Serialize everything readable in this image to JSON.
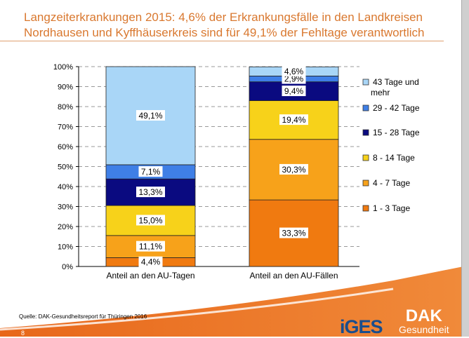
{
  "title": {
    "line1": "Langzeiterkrankungen 2015: 4,6% der Erkrankungsfälle in den Landkreisen",
    "line2": "Nordhausen und Kyffhäuserkreis sind für 49,1% der Fehltage verantwortlich"
  },
  "chart_data": {
    "type": "bar",
    "stacked": true,
    "categories": [
      "Anteil an den AU-Tagen",
      "Anteil an den AU-Fällen"
    ],
    "series": [
      {
        "name": "1 - 3 Tage",
        "color": "#f07a10",
        "values": [
          4.4,
          33.3
        ],
        "labels": [
          "4,4%",
          "33,3%"
        ]
      },
      {
        "name": "4 - 7 Tage",
        "color": "#f7a21a",
        "values": [
          11.1,
          30.3
        ],
        "labels": [
          "11,1%",
          "30,3%"
        ]
      },
      {
        "name": "8 - 14 Tage",
        "color": "#f7d21a",
        "values": [
          15.0,
          19.4
        ],
        "labels": [
          "15,0%",
          "19,4%"
        ]
      },
      {
        "name": "15 - 28 Tage",
        "color": "#0a0a80",
        "values": [
          13.3,
          9.4
        ],
        "labels": [
          "13,3%",
          "9,4%"
        ]
      },
      {
        "name": "29 - 42 Tage",
        "color": "#3f7fe6",
        "values": [
          7.1,
          2.9
        ],
        "labels": [
          "7,1%",
          "2,9%"
        ]
      },
      {
        "name": "43 Tage und mehr",
        "color": "#a9d6f7",
        "values": [
          49.1,
          4.6
        ],
        "labels": [
          "49,1%",
          "4,6%"
        ]
      }
    ],
    "yticks": [
      "0%",
      "10%",
      "20%",
      "30%",
      "40%",
      "50%",
      "60%",
      "70%",
      "80%",
      "90%",
      "100%"
    ],
    "ylim": [
      0,
      100
    ],
    "grid": true,
    "legend": "right"
  },
  "footer": {
    "source": "Quelle: DAK-Gesundheitsreport für Thüringen 2016",
    "logo_iges": "iGES",
    "logo_dak": "DAK",
    "logo_dak_sub": "Gesundheit",
    "page": "8"
  }
}
